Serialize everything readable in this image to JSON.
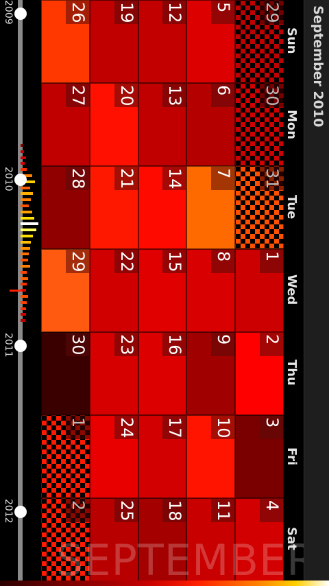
{
  "calendar": {
    "month_title": "September 2010",
    "watermark": "SEPTEMBER",
    "day_names": [
      "Sun",
      "Mon",
      "Tue",
      "Wed",
      "Thu",
      "Fri",
      "Sat"
    ],
    "weeks": [
      [
        {
          "day": "29",
          "color": "#c00000",
          "out_of_month": true
        },
        {
          "day": "30",
          "color": "#d00000",
          "out_of_month": true
        },
        {
          "day": "31",
          "color": "#ff5000",
          "out_of_month": true
        },
        {
          "day": "1",
          "color": "#cc0000",
          "out_of_month": false
        },
        {
          "day": "2",
          "color": "#ff0000",
          "out_of_month": false
        },
        {
          "day": "3",
          "color": "#7a0000",
          "out_of_month": false
        },
        {
          "day": "4",
          "color": "#d20000",
          "out_of_month": false
        }
      ],
      [
        {
          "day": "5",
          "color": "#dc0000",
          "out_of_month": false
        },
        {
          "day": "6",
          "color": "#b50000",
          "out_of_month": false
        },
        {
          "day": "7",
          "color": "#ff6a00",
          "out_of_month": false
        },
        {
          "day": "8",
          "color": "#d80000",
          "out_of_month": false
        },
        {
          "day": "9",
          "color": "#a00000",
          "out_of_month": false
        },
        {
          "day": "10",
          "color": "#ff1400",
          "out_of_month": false
        },
        {
          "day": "11",
          "color": "#c80000",
          "out_of_month": false
        }
      ],
      [
        {
          "day": "12",
          "color": "#c30000",
          "out_of_month": false
        },
        {
          "day": "13",
          "color": "#c00000",
          "out_of_month": false
        },
        {
          "day": "14",
          "color": "#ff0a00",
          "out_of_month": false
        },
        {
          "day": "15",
          "color": "#e00000",
          "out_of_month": false
        },
        {
          "day": "16",
          "color": "#dc0000",
          "out_of_month": false
        },
        {
          "day": "17",
          "color": "#d20000",
          "out_of_month": false
        },
        {
          "day": "18",
          "color": "#a50000",
          "out_of_month": false
        }
      ],
      [
        {
          "day": "19",
          "color": "#c00000",
          "out_of_month": false
        },
        {
          "day": "20",
          "color": "#ff1000",
          "out_of_month": false
        },
        {
          "day": "21",
          "color": "#ff1800",
          "out_of_month": false
        },
        {
          "day": "22",
          "color": "#d00000",
          "out_of_month": false
        },
        {
          "day": "23",
          "color": "#d60000",
          "out_of_month": false
        },
        {
          "day": "24",
          "color": "#e80000",
          "out_of_month": false
        },
        {
          "day": "25",
          "color": "#b80000",
          "out_of_month": false
        }
      ],
      [
        {
          "day": "26",
          "color": "#ff3800",
          "out_of_month": false
        },
        {
          "day": "27",
          "color": "#c00000",
          "out_of_month": false
        },
        {
          "day": "28",
          "color": "#900000",
          "out_of_month": false
        },
        {
          "day": "29",
          "color": "#ff5a10",
          "out_of_month": false
        },
        {
          "day": "30",
          "color": "#3a0000",
          "out_of_month": false
        },
        {
          "day": "1",
          "color": "#ff1a00",
          "out_of_month": true
        },
        {
          "day": "2",
          "color": "#ff1a00",
          "out_of_month": true
        }
      ]
    ]
  },
  "timeline": {
    "years": [
      "2009",
      "2010",
      "2011",
      "2012"
    ],
    "activity": [
      {
        "level": 0.1,
        "color": "#a00000"
      },
      {
        "level": 0.15,
        "color": "#c00000"
      },
      {
        "level": 0.25,
        "color": "#d00000"
      },
      {
        "level": 0.2,
        "color": "#e00000"
      },
      {
        "level": 0.3,
        "color": "#ff3000"
      },
      {
        "level": 0.55,
        "color": "#ff8000"
      },
      {
        "level": 0.7,
        "color": "#ffd000"
      },
      {
        "level": 0.45,
        "color": "#ff6000"
      },
      {
        "level": 0.6,
        "color": "#ffb000"
      },
      {
        "level": 0.5,
        "color": "#ff8000"
      },
      {
        "level": 0.4,
        "color": "#ff5000"
      },
      {
        "level": 0.55,
        "color": "#ffa000"
      },
      {
        "level": 0.65,
        "color": "#ffe000"
      },
      {
        "level": 0.85,
        "color": "#ffffff"
      },
      {
        "level": 0.75,
        "color": "#ffff60"
      },
      {
        "level": 0.6,
        "color": "#ffe000"
      },
      {
        "level": 0.5,
        "color": "#ffc000"
      },
      {
        "level": 0.45,
        "color": "#ff9000"
      },
      {
        "level": 0.4,
        "color": "#ff7000"
      },
      {
        "level": 0.35,
        "color": "#ff5000"
      },
      {
        "level": 0.45,
        "color": "#ff8000"
      },
      {
        "level": 0.3,
        "color": "#ff4000"
      },
      {
        "level": 0.38,
        "color": "#ff6000"
      },
      {
        "level": 0.3,
        "color": "#ff3000"
      },
      {
        "level": 0.25,
        "color": "#e00000"
      },
      {
        "level": 0.35,
        "color": "#ff5000"
      },
      {
        "level": 0.3,
        "color": "#ff4000"
      },
      {
        "level": 0.28,
        "color": "#ff3000"
      },
      {
        "level": 0.25,
        "color": "#d00000"
      },
      {
        "level": 0.22,
        "color": "#c00000"
      }
    ]
  }
}
